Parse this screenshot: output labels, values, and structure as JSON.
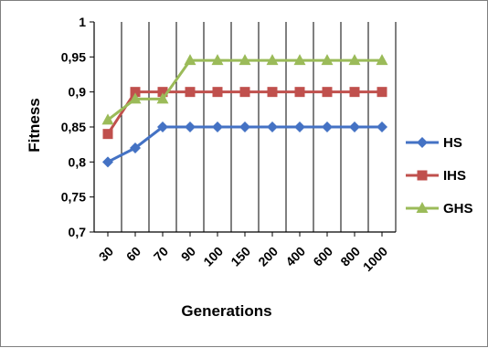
{
  "chart_data": {
    "type": "line",
    "title": "",
    "xlabel": "Generations",
    "ylabel": "Fitness",
    "categories": [
      "30",
      "60",
      "70",
      "90",
      "100",
      "150",
      "200",
      "400",
      "600",
      "800",
      "1000"
    ],
    "ylim": [
      0.7,
      1
    ],
    "yticks": [
      "0,7",
      "0,75",
      "0,8",
      "0,85",
      "0,9",
      "0,95",
      "1"
    ],
    "grid": "vertical",
    "legend_position": "right",
    "series": [
      {
        "name": "HS",
        "color": "#4472C4",
        "marker": "diamond",
        "values": [
          0.8,
          0.82,
          0.85,
          0.85,
          0.85,
          0.85,
          0.85,
          0.85,
          0.85,
          0.85,
          0.85
        ]
      },
      {
        "name": "IHS",
        "color": "#C0504D",
        "marker": "square",
        "values": [
          0.84,
          0.9,
          0.9,
          0.9,
          0.9,
          0.9,
          0.9,
          0.9,
          0.9,
          0.9,
          0.9
        ]
      },
      {
        "name": "GHS",
        "color": "#9BBB59",
        "marker": "triangle",
        "values": [
          0.86,
          0.89,
          0.89,
          0.945,
          0.945,
          0.945,
          0.945,
          0.945,
          0.945,
          0.945,
          0.945
        ]
      }
    ]
  }
}
